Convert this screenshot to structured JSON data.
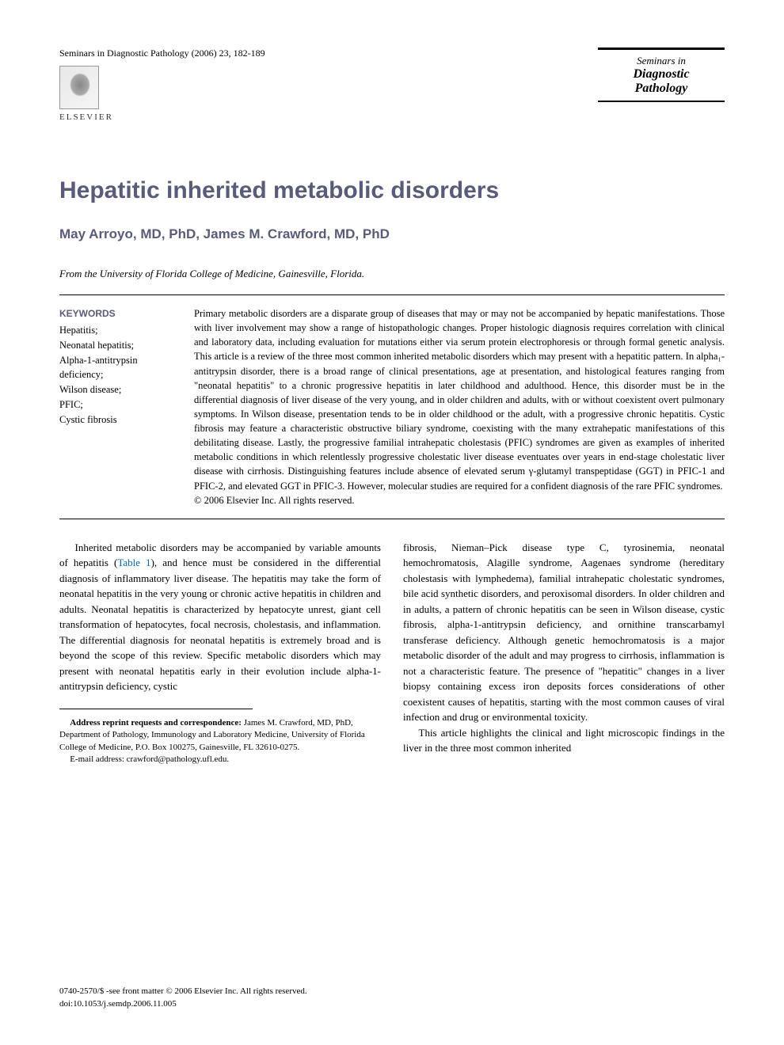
{
  "header": {
    "citation": "Seminars in Diagnostic Pathology (2006) 23, 182-189",
    "journal_line1": "Seminars in",
    "journal_line2": "Diagnostic",
    "journal_line3": "Pathology",
    "publisher": "ELSEVIER"
  },
  "title": "Hepatitic inherited metabolic disorders",
  "authors": "May Arroyo, MD, PhD, James M. Crawford, MD, PhD",
  "affiliation": "From the University of Florida College of Medicine, Gainesville, Florida.",
  "keywords": {
    "heading": "KEYWORDS",
    "items": [
      "Hepatitis;",
      "Neonatal hepatitis;",
      "Alpha-1-antitrypsin deficiency;",
      "Wilson disease;",
      "PFIC;",
      "Cystic fibrosis"
    ]
  },
  "abstract": {
    "text": "Primary metabolic disorders are a disparate group of diseases that may or may not be accompanied by hepatic manifestations. Those with liver involvement may show a range of histopathologic changes. Proper histologic diagnosis requires correlation with clinical and laboratory data, including evaluation for mutations either via serum protein electrophoresis or through formal genetic analysis. This article is a review of the three most common inherited metabolic disorders which may present with a hepatitic pattern. In alpha₁-antitrypsin disorder, there is a broad range of clinical presentations, age at presentation, and histological features ranging from \"neonatal hepatitis\" to a chronic progressive hepatitis in later childhood and adulthood. Hence, this disorder must be in the differential diagnosis of liver disease of the very young, and in older children and adults, with or without coexistent overt pulmonary symptoms. In Wilson disease, presentation tends to be in older childhood or the adult, with a progressive chronic hepatitis. Cystic fibrosis may feature a characteristic obstructive biliary syndrome, coexisting with the many extrahepatic manifestations of this debilitating disease. Lastly, the progressive familial intrahepatic cholestasis (PFIC) syndromes are given as examples of inherited metabolic conditions in which relentlessly progressive cholestatic liver disease eventuates over years in end-stage cholestatic liver disease with cirrhosis. Distinguishing features include absence of elevated serum γ-glutamyl transpeptidase (GGT) in PFIC-1 and PFIC-2, and elevated GGT in PFIC-3. However, molecular studies are required for a confident diagnosis of the rare PFIC syndromes.",
    "copyright": "© 2006 Elsevier Inc. All rights reserved."
  },
  "body": {
    "col1_p1_a": "Inherited metabolic disorders may be accompanied by variable amounts of hepatitis (",
    "col1_p1_link": "Table 1",
    "col1_p1_b": "), and hence must be considered in the differential diagnosis of inflammatory liver disease. The hepatitis may take the form of neonatal hepatitis in the very young or chronic active hepatitis in children and adults. Neonatal hepatitis is characterized by hepatocyte unrest, giant cell transformation of hepatocytes, focal necrosis, cholestasis, and inflammation. The differential diagnosis for neonatal hepatitis is extremely broad and is beyond the scope of this review. Specific metabolic disorders which may present with neonatal hepatitis early in their evolution include alpha-1-antitrypsin deficiency, cystic",
    "col2_p1": "fibrosis, Nieman–Pick disease type C, tyrosinemia, neonatal hemochromatosis, Alagille syndrome, Aagenaes syndrome (hereditary cholestasis with lymphedema), familial intrahepatic cholestatic syndromes, bile acid synthetic disorders, and peroxisomal disorders. In older children and in adults, a pattern of chronic hepatitis can be seen in Wilson disease, cystic fibrosis, alpha-1-antitrypsin deficiency, and ornithine transcarbamyl transferase deficiency. Although genetic hemochromatosis is a major metabolic disorder of the adult and may progress to cirrhosis, inflammation is not a characteristic feature. The presence of \"hepatitic\" changes in a liver biopsy containing excess iron deposits forces considerations of other coexistent causes of hepatitis, starting with the most common causes of viral infection and drug or environmental toxicity.",
    "col2_p2": "This article highlights the clinical and light microscopic findings in the liver in the three most common inherited"
  },
  "footnotes": {
    "address_label": "Address reprint requests and correspondence:",
    "address_text": " James M. Crawford, MD, PhD, Department of Pathology, Immunology and Laboratory Medicine, University of Florida College of Medicine, P.O. Box 100275, Gainesville, FL 32610-0275.",
    "email_label": "E-mail address: ",
    "email": "crawford@pathology.ufl.edu."
  },
  "footer": {
    "line1": "0740-2570/$ -see front matter © 2006 Elsevier Inc. All rights reserved.",
    "line2": "doi:10.1053/j.semdp.2006.11.005"
  },
  "colors": {
    "heading_color": "#5a5a7a",
    "link_color": "#0066cc",
    "text_color": "#000000",
    "background": "#ffffff"
  },
  "typography": {
    "title_fontsize": 30,
    "authors_fontsize": 17,
    "body_fontsize": 13,
    "abstract_fontsize": 12.5,
    "footnote_fontsize": 11
  }
}
